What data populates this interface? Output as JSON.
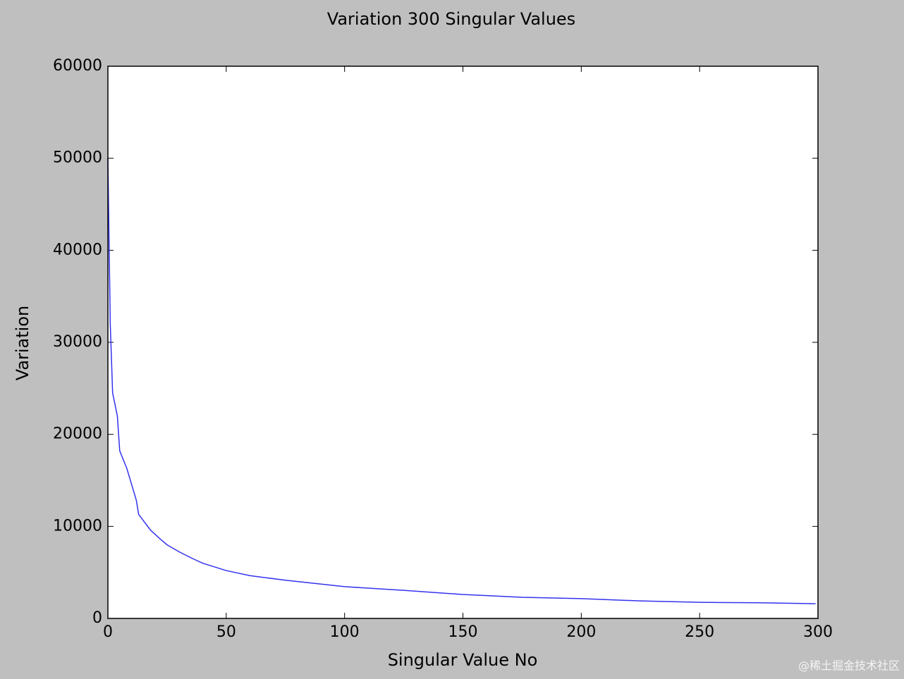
{
  "chart_data": {
    "type": "line",
    "title": "Variation 300 Singular Values",
    "xlabel": "Singular Value No",
    "ylabel": "Variation",
    "x": [
      0,
      1,
      2,
      4,
      5,
      8,
      12,
      13,
      18,
      22,
      25,
      30,
      35,
      40,
      50,
      60,
      75,
      100,
      125,
      150,
      175,
      200,
      225,
      250,
      275,
      299
    ],
    "series": [
      {
        "name": "Variation",
        "color": "#3333ee",
        "values": [
          50000,
          32000,
          24500,
          22000,
          18200,
          16300,
          12850,
          11300,
          9600,
          8650,
          8000,
          7250,
          6600,
          6000,
          5200,
          4650,
          4150,
          3450,
          3050,
          2600,
          2300,
          2150,
          1900,
          1750,
          1700,
          1600
        ]
      }
    ],
    "xlim": [
      0,
      300
    ],
    "xticks": [
      0,
      50,
      100,
      150,
      200,
      250,
      300
    ],
    "ylim": [
      0,
      60000
    ],
    "yticks": [
      0,
      10000,
      20000,
      30000,
      40000,
      50000,
      60000
    ],
    "grid": false,
    "watermark": "@稀土掘金技术社区"
  }
}
